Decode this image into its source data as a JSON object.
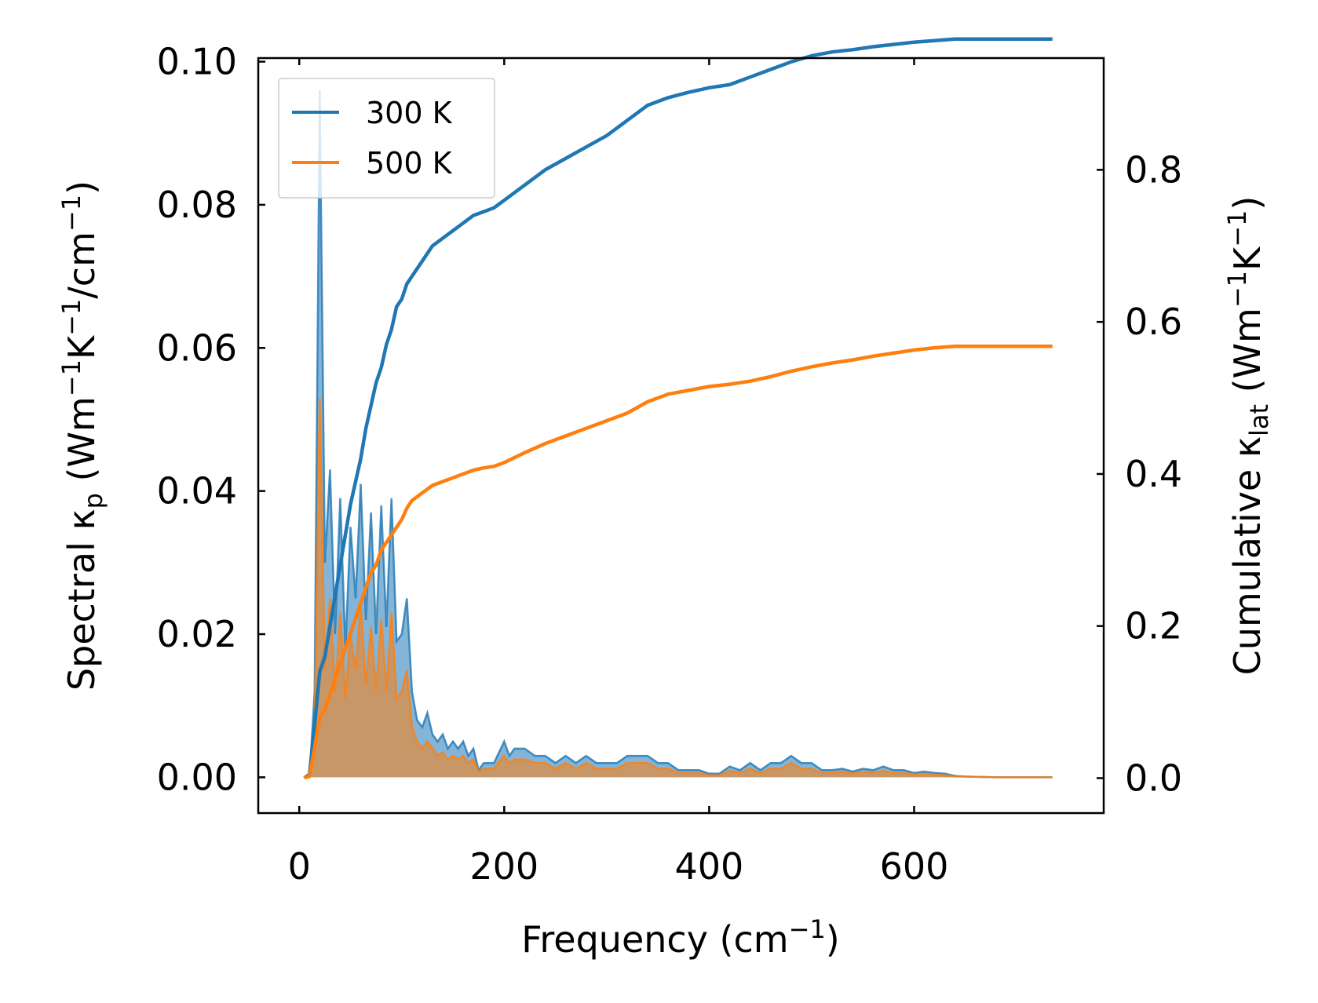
{
  "chart_data": {
    "type": "line",
    "title": "",
    "xlabel": "Frequency (cm",
    "xlabel_sup": "−1",
    "xlabel_end": ")",
    "ylabel_left": {
      "prefix": "Spectral κ",
      "sub": "p",
      "units": " (Wm",
      "sup1": "−1",
      "mid": "K",
      "sup2": "−1",
      "mid2": "/cm",
      "sup3": "−1",
      "end": ")"
    },
    "ylabel_right": {
      "prefix": "Cumulative κ",
      "sub": "lat",
      "units": " (Wm",
      "sup1": "−1",
      "mid": "K",
      "sup2": "−1",
      "end": ")"
    },
    "xlim": [
      -40,
      785
    ],
    "ylim_left": [
      -0.005,
      0.1005
    ],
    "ylim_right": [
      -0.046,
      0.947
    ],
    "xticks": [
      0,
      200,
      400,
      600
    ],
    "xtick_labels": [
      "0",
      "200",
      "400",
      "600"
    ],
    "yticks_left": [
      0.0,
      0.02,
      0.04,
      0.06,
      0.08,
      0.1
    ],
    "ytick_labels_left": [
      "0.00",
      "0.02",
      "0.04",
      "0.06",
      "0.08",
      "0.10"
    ],
    "yticks_right": [
      0.0,
      0.2,
      0.4,
      0.6,
      0.8
    ],
    "ytick_labels_right": [
      "0.0",
      "0.2",
      "0.4",
      "0.6",
      "0.8"
    ],
    "legend": {
      "placement": "top-left",
      "entries": [
        {
          "label": "300 K",
          "color": "#1f77b4"
        },
        {
          "label": "500 K",
          "color": "#ff7f0e"
        }
      ]
    },
    "spectral_x": [
      5,
      10,
      15,
      20,
      25,
      30,
      35,
      40,
      45,
      50,
      55,
      60,
      65,
      70,
      75,
      80,
      85,
      90,
      95,
      100,
      105,
      110,
      115,
      120,
      125,
      130,
      135,
      140,
      145,
      150,
      155,
      160,
      165,
      170,
      175,
      180,
      190,
      200,
      205,
      210,
      220,
      230,
      240,
      250,
      260,
      270,
      280,
      290,
      300,
      310,
      320,
      330,
      340,
      350,
      360,
      370,
      380,
      390,
      400,
      410,
      420,
      430,
      440,
      450,
      460,
      470,
      480,
      490,
      500,
      510,
      520,
      530,
      540,
      550,
      560,
      570,
      580,
      590,
      600,
      610,
      620,
      630,
      640,
      650,
      680,
      700,
      735
    ],
    "series": [
      {
        "name": "300 K",
        "color": "#1f77b4",
        "spectral": [
          0,
          0,
          0.012,
          0.096,
          0.03,
          0.043,
          0.02,
          0.039,
          0.018,
          0.035,
          0.025,
          0.041,
          0.022,
          0.037,
          0.02,
          0.038,
          0.021,
          0.039,
          0.019,
          0.02,
          0.025,
          0.012,
          0.008,
          0.007,
          0.009,
          0.006,
          0.005,
          0.006,
          0.004,
          0.005,
          0.004,
          0.005,
          0.003,
          0.004,
          0.001,
          0.002,
          0.002,
          0.005,
          0.003,
          0.004,
          0.004,
          0.003,
          0.003,
          0.002,
          0.003,
          0.002,
          0.003,
          0.002,
          0.002,
          0.002,
          0.003,
          0.003,
          0.003,
          0.002,
          0.002,
          0.001,
          0.001,
          0.001,
          0.0005,
          0.0005,
          0.0015,
          0.001,
          0.002,
          0.001,
          0.002,
          0.002,
          0.003,
          0.002,
          0.002,
          0.001,
          0.001,
          0.0012,
          0.0008,
          0.0012,
          0.001,
          0.0015,
          0.001,
          0.001,
          0.0006,
          0.0008,
          0.0006,
          0.0005,
          0.0002,
          0.0001,
          0,
          0,
          0
        ],
        "cumulative_x": [
          5,
          10,
          15,
          20,
          25,
          30,
          35,
          40,
          45,
          50,
          55,
          60,
          65,
          70,
          75,
          80,
          85,
          90,
          95,
          100,
          105,
          110,
          120,
          130,
          140,
          150,
          160,
          170,
          180,
          190,
          200,
          220,
          240,
          260,
          280,
          300,
          320,
          340,
          360,
          380,
          400,
          420,
          440,
          460,
          480,
          500,
          520,
          540,
          560,
          580,
          600,
          620,
          640,
          660,
          680,
          700,
          735
        ],
        "cumulative": [
          0,
          0.005,
          0.07,
          0.14,
          0.16,
          0.2,
          0.24,
          0.28,
          0.32,
          0.36,
          0.39,
          0.42,
          0.46,
          0.49,
          0.52,
          0.54,
          0.57,
          0.59,
          0.62,
          0.63,
          0.65,
          0.66,
          0.68,
          0.7,
          0.71,
          0.72,
          0.73,
          0.74,
          0.745,
          0.75,
          0.76,
          0.78,
          0.8,
          0.815,
          0.83,
          0.845,
          0.865,
          0.885,
          0.895,
          0.902,
          0.908,
          0.912,
          0.922,
          0.932,
          0.942,
          0.95,
          0.955,
          0.958,
          0.962,
          0.965,
          0.968,
          0.97,
          0.972,
          0.972,
          0.972,
          0.972,
          0.972
        ]
      },
      {
        "name": "500 K",
        "color": "#ff7f0e",
        "spectral": [
          0,
          0,
          0.007,
          0.053,
          0.015,
          0.025,
          0.012,
          0.023,
          0.011,
          0.02,
          0.015,
          0.024,
          0.013,
          0.021,
          0.012,
          0.022,
          0.012,
          0.023,
          0.011,
          0.012,
          0.015,
          0.007,
          0.005,
          0.004,
          0.005,
          0.004,
          0.003,
          0.0035,
          0.0025,
          0.003,
          0.0025,
          0.003,
          0.002,
          0.0025,
          0.0008,
          0.0012,
          0.0012,
          0.003,
          0.002,
          0.0025,
          0.0025,
          0.002,
          0.002,
          0.0012,
          0.002,
          0.0012,
          0.002,
          0.0012,
          0.0012,
          0.0012,
          0.002,
          0.002,
          0.002,
          0.0012,
          0.0012,
          0.0006,
          0.0006,
          0.0006,
          0.0003,
          0.0003,
          0.0009,
          0.0006,
          0.0012,
          0.0006,
          0.0012,
          0.0012,
          0.002,
          0.0012,
          0.0012,
          0.0006,
          0.0006,
          0.0008,
          0.0005,
          0.0008,
          0.0006,
          0.0009,
          0.0006,
          0.0006,
          0.0004,
          0.0005,
          0.0004,
          0.0003,
          0.0001,
          0.0001,
          0,
          0,
          0
        ],
        "cumulative_x": [
          5,
          10,
          15,
          20,
          25,
          30,
          35,
          40,
          45,
          50,
          55,
          60,
          65,
          70,
          75,
          80,
          85,
          90,
          95,
          100,
          105,
          110,
          120,
          130,
          140,
          150,
          160,
          170,
          180,
          190,
          200,
          220,
          240,
          260,
          280,
          300,
          320,
          340,
          360,
          380,
          400,
          420,
          440,
          460,
          480,
          500,
          520,
          540,
          560,
          580,
          600,
          620,
          640,
          660,
          680,
          700,
          735
        ],
        "cumulative": [
          0,
          0.003,
          0.04,
          0.08,
          0.09,
          0.11,
          0.13,
          0.15,
          0.17,
          0.19,
          0.21,
          0.23,
          0.25,
          0.27,
          0.28,
          0.3,
          0.31,
          0.32,
          0.33,
          0.34,
          0.355,
          0.365,
          0.375,
          0.385,
          0.39,
          0.395,
          0.4,
          0.405,
          0.408,
          0.41,
          0.415,
          0.428,
          0.44,
          0.45,
          0.46,
          0.47,
          0.48,
          0.495,
          0.505,
          0.51,
          0.515,
          0.518,
          0.522,
          0.528,
          0.535,
          0.541,
          0.546,
          0.55,
          0.555,
          0.559,
          0.563,
          0.566,
          0.568,
          0.568,
          0.568,
          0.568,
          0.568
        ]
      }
    ]
  }
}
